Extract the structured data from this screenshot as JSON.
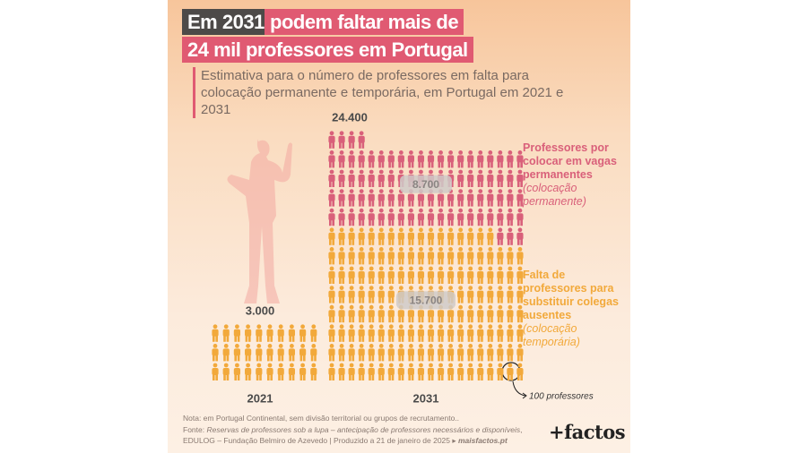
{
  "title": [
    "Em 2031",
    "podem faltar mais de",
    "24 mil professores em Portugal"
  ],
  "chart_data": {
    "type": "pictogram",
    "subtitle": "Estimativa para o número de professores em falta para colocação permanente e temporária, em Portugal em 2021 e 2031",
    "categories": [
      "2021",
      "2031"
    ],
    "totals": [
      3000,
      24400
    ],
    "total_labels": [
      "3.000",
      "24.400"
    ],
    "unit_value": 100,
    "unit_label": "100 professores",
    "series": [
      {
        "name": "Professores por colocar em vagas permanentes",
        "note": "(colocação permanente)",
        "color": "#d9607a",
        "values": [
          null,
          8700
        ],
        "value_labels": [
          null,
          "8.700"
        ]
      },
      {
        "name": "Falta de professores para substituir colegas ausentes",
        "note": "(colocação temporária)",
        "color": "#f2a93b",
        "values": [
          3000,
          15700
        ],
        "value_labels": [
          null,
          "15.700"
        ]
      }
    ]
  },
  "notes": {
    "note": "Nota: em Portugal Continental, sem divisão territorial ou grupos de recrutamento..",
    "source": [
      "Fonte: ",
      "Reservas de professores sob a lupa – antecipação de professores necessários e disponíveis",
      ", EDULOG – Fundação Belmiro de Azevedo | Produzido a 21 de janeiro de 2025 ▸ ",
      "maisfactos.pt"
    ]
  },
  "brand": "+factos"
}
